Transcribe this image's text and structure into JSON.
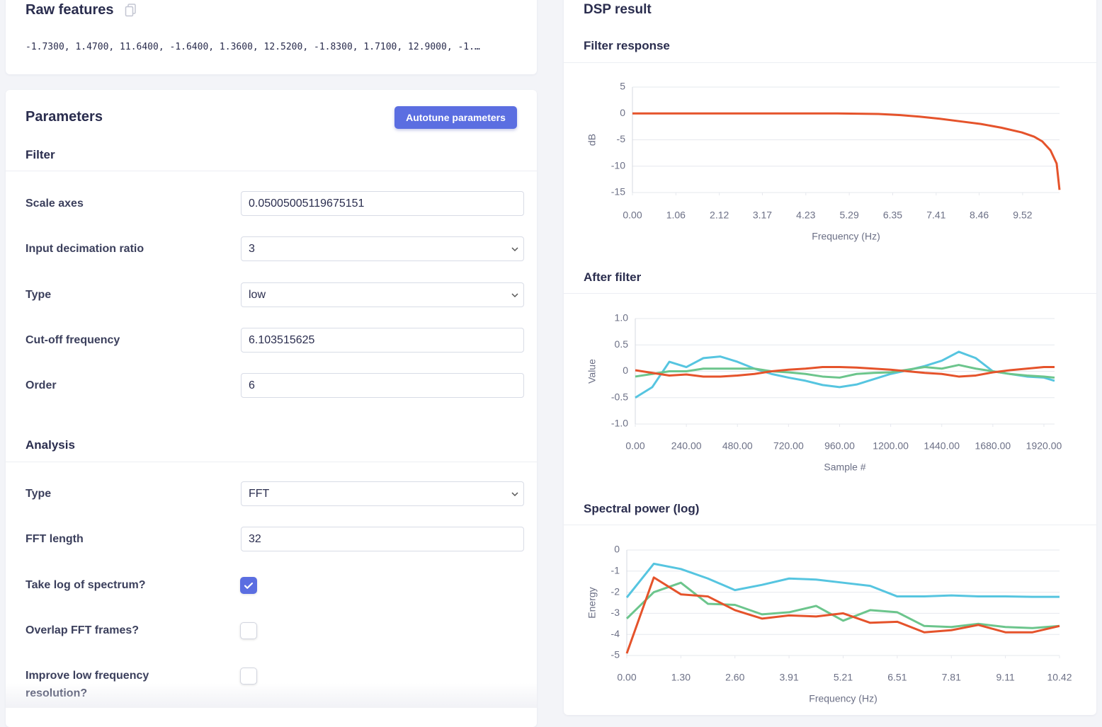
{
  "raw_features": {
    "title": "Raw features",
    "text": "-1.7300, 1.4700, 11.6400, -1.6400, 1.3600, 12.5200, -1.8300, 1.7100, 12.9000, -1.…"
  },
  "parameters": {
    "title": "Parameters",
    "button": "Autotune parameters",
    "groups": [
      {
        "heading": "Filter",
        "fields": [
          {
            "label": "Scale axes",
            "kind": "text",
            "value": "0.05005005119675151"
          },
          {
            "label": "Input decimation ratio",
            "kind": "select",
            "value": "3"
          },
          {
            "label": "Type",
            "kind": "select",
            "value": "low"
          },
          {
            "label": "Cut-off frequency",
            "kind": "text",
            "value": "6.103515625"
          },
          {
            "label": "Order",
            "kind": "text",
            "value": "6"
          }
        ]
      },
      {
        "heading": "Analysis",
        "fields": [
          {
            "label": "Type",
            "kind": "select",
            "value": "FFT"
          },
          {
            "label": "FFT length",
            "kind": "text",
            "value": "32"
          },
          {
            "label": "Take log of spectrum?",
            "kind": "checkbox",
            "checked": true
          },
          {
            "label": "Overlap FFT frames?",
            "kind": "checkbox",
            "checked": false
          },
          {
            "label": "Improve low frequency resolution?",
            "kind": "checkbox",
            "checked": false
          }
        ]
      }
    ]
  },
  "dsp_result": {
    "title": "DSP result",
    "charts": [
      {
        "type": "line",
        "title": "Filter response",
        "xlabel": "Frequency (Hz)",
        "ylabel": "dB",
        "grid": true,
        "x": [
          0,
          1,
          2,
          3,
          4,
          5,
          5.5,
          6,
          6.5,
          7,
          7.5,
          8,
          8.5,
          9,
          9.5,
          9.8,
          10,
          10.2,
          10.35,
          10.42
        ],
        "series": [
          {
            "color": "#e5532b",
            "values": [
              0,
              0,
              0,
              0,
              0,
              0,
              -0.05,
              -0.1,
              -0.3,
              -0.6,
              -1.0,
              -1.5,
              -2.0,
              -2.7,
              -3.6,
              -4.4,
              -5.3,
              -7,
              -9.5,
              -14.5
            ]
          }
        ],
        "xlim": [
          0,
          10.42
        ],
        "ylim": [
          -15,
          5
        ],
        "xticks": [
          {
            "value": 0,
            "label": "0.00"
          },
          1.06,
          2.12,
          3.17,
          4.23,
          5.29,
          6.35,
          7.41,
          8.46,
          9.52
        ],
        "yticks": [
          5,
          0,
          -5,
          -10,
          -15
        ]
      },
      {
        "type": "line",
        "title": "After filter",
        "xlabel": "Sample #",
        "ylabel": "Value",
        "grid": true,
        "x": [
          0,
          80,
          160,
          240,
          320,
          400,
          480,
          560,
          640,
          720,
          800,
          880,
          960,
          1040,
          1120,
          1200,
          1280,
          1360,
          1440,
          1520,
          1600,
          1680,
          1760,
          1840,
          1920,
          1970
        ],
        "series": [
          {
            "color": "#56c5e0",
            "values": [
              -0.5,
              -0.3,
              0.18,
              0.08,
              0.25,
              0.28,
              0.18,
              0.05,
              -0.05,
              -0.12,
              -0.18,
              -0.26,
              -0.3,
              -0.25,
              -0.15,
              -0.05,
              0.02,
              0.1,
              0.2,
              0.37,
              0.25,
              0.0,
              -0.05,
              -0.1,
              -0.12,
              -0.18
            ]
          },
          {
            "color": "#6cc58c",
            "values": [
              -0.1,
              -0.05,
              0.0,
              0.0,
              0.05,
              0.05,
              0.05,
              0.05,
              0.0,
              -0.02,
              -0.05,
              -0.1,
              -0.12,
              -0.05,
              -0.03,
              -0.02,
              0.03,
              0.08,
              0.05,
              0.12,
              0.05,
              0.0,
              -0.05,
              -0.08,
              -0.1,
              -0.12
            ]
          },
          {
            "color": "#e5532b",
            "values": [
              0.02,
              -0.03,
              -0.08,
              -0.06,
              -0.1,
              -0.1,
              -0.08,
              -0.05,
              0.0,
              0.03,
              0.05,
              0.08,
              0.08,
              0.07,
              0.05,
              0.03,
              0.0,
              -0.03,
              -0.05,
              -0.1,
              -0.08,
              -0.02,
              0.02,
              0.05,
              0.08,
              0.08
            ]
          }
        ],
        "xlim": [
          0,
          1970
        ],
        "ylim": [
          -1,
          1
        ],
        "xticks": [
          {
            "value": 0,
            "label": "0.00"
          },
          {
            "value": 240,
            "label": "240.00"
          },
          {
            "value": 480,
            "label": "480.00"
          },
          {
            "value": 720,
            "label": "720.00"
          },
          {
            "value": 960,
            "label": "960.00"
          },
          {
            "value": 1200,
            "label": "1200.00"
          },
          {
            "value": 1440,
            "label": "1440.00"
          },
          {
            "value": 1680,
            "label": "1680.00"
          },
          {
            "value": 1920,
            "label": "1920.00"
          }
        ],
        "yticks": [
          {
            "value": 1,
            "label": "1.0"
          },
          0.5,
          0,
          -0.5,
          {
            "value": -1,
            "label": "-1.0"
          }
        ]
      },
      {
        "type": "line",
        "title": "Spectral power (log)",
        "xlabel": "Frequency (Hz)",
        "ylabel": "Energy",
        "grid": true,
        "x": [
          0,
          0.651,
          1.302,
          1.953,
          2.604,
          3.255,
          3.906,
          4.557,
          5.208,
          5.859,
          6.51,
          7.161,
          7.812,
          8.463,
          9.114,
          9.765,
          10.416
        ],
        "series": [
          {
            "color": "#56c5e0",
            "values": [
              -2.25,
              -0.65,
              -0.9,
              -1.35,
              -1.9,
              -1.65,
              -1.35,
              -1.4,
              -1.55,
              -1.7,
              -2.2,
              -2.2,
              -2.15,
              -2.2,
              -2.2,
              -2.22,
              -2.22
            ]
          },
          {
            "color": "#6cc58c",
            "values": [
              -3.25,
              -2.0,
              -1.55,
              -2.55,
              -2.6,
              -3.05,
              -2.95,
              -2.65,
              -3.35,
              -2.85,
              -2.95,
              -3.6,
              -3.65,
              -3.5,
              -3.65,
              -3.7,
              -3.6
            ]
          },
          {
            "color": "#e5532b",
            "values": [
              -4.9,
              -1.3,
              -2.1,
              -2.2,
              -2.85,
              -3.25,
              -3.1,
              -3.15,
              -3.0,
              -3.45,
              -3.4,
              -3.9,
              -3.8,
              -3.55,
              -3.9,
              -3.9,
              -3.6
            ]
          }
        ],
        "xlim": [
          0,
          10.416
        ],
        "ylim": [
          -5,
          0
        ],
        "xticks": [
          {
            "value": 0,
            "label": "0.00"
          },
          {
            "value": 1.302,
            "label": "1.30"
          },
          {
            "value": 2.604,
            "label": "2.60"
          },
          {
            "value": 3.906,
            "label": "3.91"
          },
          {
            "value": 5.208,
            "label": "5.21"
          },
          {
            "value": 6.51,
            "label": "6.51"
          },
          {
            "value": 7.812,
            "label": "7.81"
          },
          {
            "value": 9.114,
            "label": "9.11"
          },
          {
            "value": 10.416,
            "label": "10.42"
          }
        ],
        "yticks": [
          0,
          -1,
          -2,
          -3,
          -4,
          -5
        ]
      }
    ]
  }
}
